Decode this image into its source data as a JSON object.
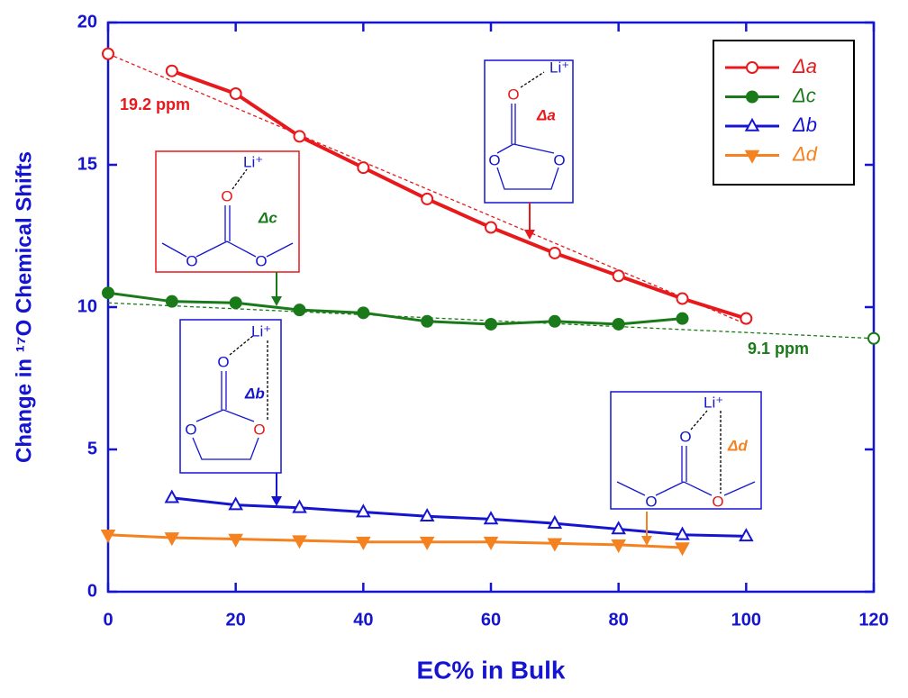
{
  "chart_data": {
    "type": "line",
    "xlabel": "EC% in Bulk",
    "ylabel": "Change in ¹⁷O Chemical Shifts",
    "xlim": [
      0,
      120
    ],
    "xticks": [
      0,
      20,
      40,
      60,
      80,
      100,
      120
    ],
    "ylim": [
      0,
      20
    ],
    "yticks": [
      0,
      5,
      10,
      15,
      20
    ],
    "legend": "upper right",
    "series": [
      {
        "name": "Δa",
        "color": "#e8191c",
        "marker": "open-circle",
        "x": [
          10,
          20,
          30,
          40,
          50,
          60,
          70,
          80,
          90,
          100
        ],
        "values": [
          18.3,
          17.5,
          16.0,
          14.9,
          13.8,
          12.8,
          11.9,
          11.1,
          10.3,
          9.6
        ]
      },
      {
        "name": "Δc",
        "color": "#1a7a1a",
        "marker": "filled-circle",
        "x": [
          0,
          10,
          20,
          30,
          40,
          50,
          60,
          70,
          80,
          90
        ],
        "values": [
          10.5,
          10.2,
          10.15,
          9.9,
          9.8,
          9.5,
          9.4,
          9.5,
          9.4,
          9.6
        ]
      },
      {
        "name": "Δb",
        "color": "#1515d0",
        "marker": "open-triangle-up",
        "x": [
          10,
          20,
          30,
          40,
          50,
          60,
          70,
          80,
          90,
          100
        ],
        "values": [
          3.3,
          3.05,
          2.95,
          2.8,
          2.65,
          2.55,
          2.4,
          2.2,
          2.0,
          1.95
        ]
      },
      {
        "name": "Δd",
        "color": "#f58220",
        "marker": "filled-triangle-down",
        "x": [
          0,
          10,
          20,
          30,
          40,
          50,
          60,
          70,
          80,
          90
        ],
        "values": [
          2.0,
          1.9,
          1.85,
          1.8,
          1.75,
          1.75,
          1.75,
          1.7,
          1.65,
          1.55
        ]
      }
    ],
    "fits": [
      {
        "color": "#e8191c",
        "x": [
          0,
          100
        ],
        "values": [
          18.9,
          9.4
        ]
      },
      {
        "color": "#1a7a1a",
        "x": [
          0,
          120
        ],
        "values": [
          10.15,
          8.9
        ]
      }
    ],
    "annotations": [
      "19.2 ppm",
      "9.1 ppm"
    ],
    "insets": [
      {
        "label": "Δa",
        "cation": "Li⁺",
        "atoms": [
          "O",
          "O",
          "O"
        ]
      },
      {
        "label": "Δc",
        "cation": "Li⁺",
        "atoms": [
          "O",
          "O",
          "O"
        ]
      },
      {
        "label": "Δb",
        "cation": "Li⁺",
        "atoms": [
          "O",
          "O",
          "O"
        ]
      },
      {
        "label": "Δd",
        "cation": "Li⁺",
        "atoms": [
          "O",
          "O",
          "O"
        ]
      }
    ]
  }
}
